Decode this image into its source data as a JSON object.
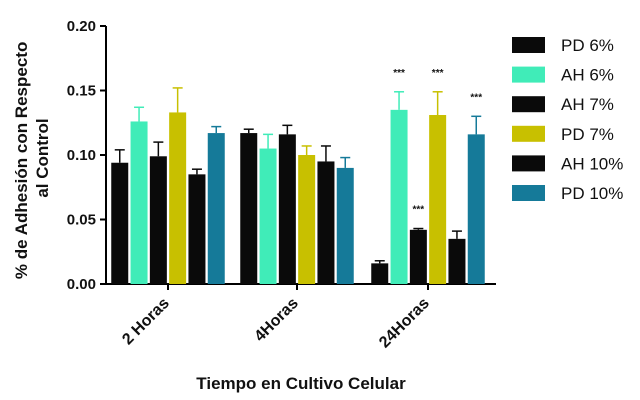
{
  "chart_data": {
    "type": "bar",
    "xlabel": "Tiempo en Cultivo Celular",
    "ylabel_lines": [
      "% de Adhesión con Respecto",
      "al Control"
    ],
    "ylim": [
      0,
      0.2
    ],
    "yticks": [
      "0.00",
      "0.05",
      "0.10",
      "0.15",
      "0.20"
    ],
    "categories": [
      "2 Horas",
      "4Horas",
      "24Horas"
    ],
    "legend_position": "right",
    "grid": false,
    "series": [
      {
        "name": "PD 6%",
        "color": "#0a0a0a",
        "values": [
          0.094,
          0.117,
          0.016
        ],
        "errors": [
          0.01,
          0.003,
          0.002
        ],
        "sig": [
          "",
          "",
          ""
        ]
      },
      {
        "name": "AH 6%",
        "color": "#40ecb8",
        "values": [
          0.126,
          0.105,
          0.135
        ],
        "errors": [
          0.011,
          0.011,
          0.014
        ],
        "sig": [
          "",
          "",
          "***"
        ]
      },
      {
        "name": "AH 7%",
        "color": "#0a0a0a",
        "values": [
          0.099,
          0.116,
          0.042
        ],
        "errors": [
          0.011,
          0.007,
          0.001
        ],
        "sig": [
          "",
          "",
          "***"
        ]
      },
      {
        "name": "PD 7%",
        "color": "#c8c000",
        "values": [
          0.133,
          0.1,
          0.131
        ],
        "errors": [
          0.019,
          0.007,
          0.018
        ],
        "sig": [
          "",
          "",
          "***"
        ]
      },
      {
        "name": "AH 10%",
        "color": "#0a0a0a",
        "values": [
          0.085,
          0.095,
          0.035
        ],
        "errors": [
          0.004,
          0.012,
          0.006
        ],
        "sig": [
          "",
          "",
          ""
        ]
      },
      {
        "name": "PD 10%",
        "color": "#157a99",
        "values": [
          0.117,
          0.09,
          0.116
        ],
        "errors": [
          0.005,
          0.008,
          0.014
        ],
        "sig": [
          "",
          "",
          "***"
        ]
      }
    ]
  }
}
